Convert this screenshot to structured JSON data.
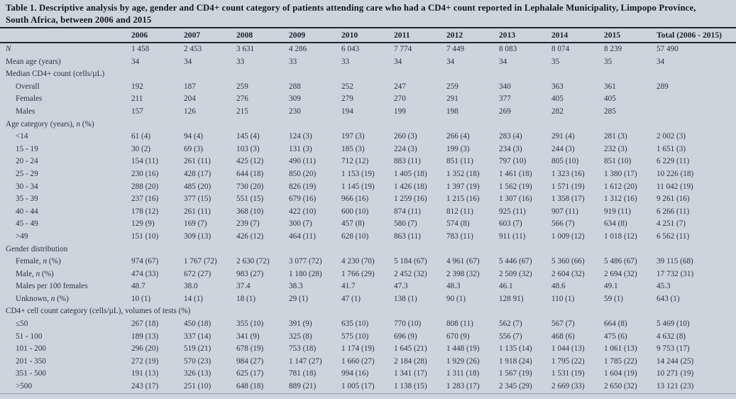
{
  "table": {
    "title_line1": "Table 1. Descriptive analysis by age, gender and CD4+ count category of patients attending care who had a CD4+ count reported in Lephalale Municipality, Limpopo Province,",
    "title_line2": "South Africa, between 2006 and 2015",
    "columns": [
      "2006",
      "2007",
      "2008",
      "2009",
      "2010",
      "2011",
      "2012",
      "2013",
      "2014",
      "2015",
      "Total (2006 - 2015)"
    ],
    "rows": [
      {
        "label": "N",
        "italic": true,
        "indent": 0,
        "values": [
          "1 458",
          "2 453",
          "3 631",
          "4 286",
          "6 043",
          "7 774",
          "7 449",
          "8 083",
          "8 074",
          "8 239",
          "57 490"
        ]
      },
      {
        "label": "Mean age (years)",
        "indent": 0,
        "values": [
          "34",
          "34",
          "33",
          "33",
          "33",
          "34",
          "34",
          "34",
          "35",
          "35",
          "34"
        ]
      },
      {
        "label": "Median CD4+ count (cells/µL)",
        "section": true
      },
      {
        "label": "Overall",
        "indent": 1,
        "values": [
          "192",
          "187",
          "259",
          "288",
          "252",
          "247",
          "259",
          "340",
          "363",
          "361",
          "289"
        ]
      },
      {
        "label": "Females",
        "indent": 1,
        "values": [
          "211",
          "204",
          "276",
          "309",
          "279",
          "270",
          "291",
          "377",
          "405",
          "405",
          ""
        ]
      },
      {
        "label": "Males",
        "indent": 1,
        "values": [
          "157",
          "126",
          "215",
          "230",
          "194",
          "199",
          "198",
          "269",
          "282",
          "285",
          ""
        ]
      },
      {
        "label": "Age category (years), n (%)",
        "section": true
      },
      {
        "label": "<14",
        "indent": 1,
        "values": [
          "61 (4)",
          "94 (4)",
          "145 (4)",
          "124 (3)",
          "197 (3)",
          "260 (3)",
          "266 (4)",
          "283 (4)",
          "291 (4)",
          "281 (3)",
          "2 002 (3)"
        ]
      },
      {
        "label": "15 - 19",
        "indent": 1,
        "values": [
          "30 (2)",
          "69 (3)",
          "103 (3)",
          "131 (3)",
          "185 (3)",
          "224 (3)",
          "199 (3)",
          "234 (3)",
          "244 (3)",
          "232 (3)",
          "1 651 (3)"
        ]
      },
      {
        "label": "20 - 24",
        "indent": 1,
        "values": [
          "154 (11)",
          "261 (11)",
          "425 (12)",
          "490 (11)",
          "712 (12)",
          "883 (11)",
          "851 (11)",
          "797 (10)",
          "805 (10)",
          "851 (10)",
          "6 229 (11)"
        ]
      },
      {
        "label": "25 - 29",
        "indent": 1,
        "values": [
          "230 (16)",
          "428 (17)",
          "644 (18)",
          "850 (20)",
          "1 153 (19)",
          "1 405 (18)",
          "1 352 (18)",
          "1 461 (18)",
          "1 323 (16)",
          "1 380 (17)",
          "10 226 (18)"
        ]
      },
      {
        "label": "30 - 34",
        "indent": 1,
        "values": [
          "288 (20)",
          "485 (20)",
          "730 (20)",
          "826 (19)",
          "1 145 (19)",
          "1 426 (18)",
          "1 397 (19)",
          "1 562 (19)",
          "1 571 (19)",
          "1 612 (20)",
          "11 042 (19)"
        ]
      },
      {
        "label": "35 - 39",
        "indent": 1,
        "values": [
          "237 (16)",
          "377 (15)",
          "551 (15)",
          "679 (16)",
          "966 (16)",
          "1 259 (16)",
          "1 215 (16)",
          "1 307 (16)",
          "1 358 (17)",
          "1 312 (16)",
          "9 261 (16)"
        ]
      },
      {
        "label": "40 - 44",
        "indent": 1,
        "values": [
          "178 (12)",
          "261 (11)",
          "368 (10)",
          "422 (10)",
          "600 (10)",
          "874 (11)",
          "812 (11)",
          "925 (11)",
          "907 (11)",
          "919 (11)",
          "6 266 (11)"
        ]
      },
      {
        "label": "45 - 49",
        "indent": 1,
        "values": [
          "129 (9)",
          "169 (7)",
          "239 (7)",
          "300 (7)",
          "457 (8)",
          "580 (7)",
          "574 (8)",
          "603 (7)",
          "566 (7)",
          "634 (8)",
          "4 251 (7)"
        ]
      },
      {
        "label": ">49",
        "indent": 1,
        "values": [
          "151 (10)",
          "309 (13)",
          "426 (12)",
          "464 (11)",
          "628 (10)",
          "863 (11)",
          "783 (11)",
          "911 (11)",
          "1 009 (12)",
          "1 018 (12)",
          "6 562 (11)"
        ]
      },
      {
        "label": "Gender distribution",
        "section": true
      },
      {
        "label": "Female, n (%)",
        "indent": 1,
        "values": [
          "974 (67)",
          "1 767 (72)",
          "2 630 (72)",
          "3 077 (72)",
          "4 230 (70)",
          "5 184 (67)",
          "4 961 (67)",
          "5 446 (67)",
          "5 360 (66)",
          "5 486 (67)",
          "39 115 (68)"
        ]
      },
      {
        "label": "Male, n (%)",
        "indent": 1,
        "values": [
          "474 (33)",
          "672 (27)",
          "983 (27)",
          "1 180 (28)",
          "1 766 (29)",
          "2 452 (32)",
          "2 398 (32)",
          "2 509 (32)",
          "2 604 (32)",
          "2 694 (32)",
          "17 732 (31)"
        ]
      },
      {
        "label": "Males per 100 females",
        "indent": 1,
        "values": [
          "48.7",
          "38.0",
          "37.4",
          "38.3",
          "41.7",
          "47.3",
          "48.3",
          "46.1",
          "48.6",
          "49.1",
          "45.3"
        ]
      },
      {
        "label": "Unknown, n (%)",
        "indent": 1,
        "values": [
          "10 (1)",
          "14 (1)",
          "18 (1)",
          "29 (1)",
          "47 (1)",
          "138 (1)",
          "90 (1)",
          "128 91)",
          "110 (1)",
          "59 (1)",
          "643 (1)"
        ]
      },
      {
        "label": "CD4+ cell count category (cells/µL), volumes of tests (%)",
        "section": true
      },
      {
        "label": "≤50",
        "indent": 1,
        "values": [
          "267 (18)",
          "450 (18)",
          "355 (10)",
          "391 (9)",
          "635 (10)",
          "770 (10)",
          "808 (11)",
          "562 (7)",
          "567 (7)",
          "664 (8)",
          "5 469 (10)"
        ]
      },
      {
        "label": "51 - 100",
        "indent": 1,
        "values": [
          "189 (13)",
          "337 (14)",
          "341 (9)",
          "325 (8)",
          "575 (10)",
          "696 (9)",
          "670 (9)",
          "556 (7)",
          "468 (6)",
          "475 (6)",
          "4 632 (8)"
        ]
      },
      {
        "label": "101 - 200",
        "indent": 1,
        "values": [
          "296 (20)",
          "519 (21)",
          "678 (19)",
          "753 (18)",
          "1 174 (19)",
          "1 645 (21)",
          "1 448 (19)",
          "1 135 (14)",
          "1 044 (13)",
          "1 061 (13)",
          "9 753 (17)"
        ]
      },
      {
        "label": "201 - 350",
        "indent": 1,
        "values": [
          "272 (19)",
          "570 (23)",
          "984 (27)",
          "1 147 (27)",
          "1 660 (27)",
          "2 184 (28)",
          "1 929 (26)",
          "1 918 (24)",
          "1 795 (22)",
          "1 785 (22)",
          "14 244 (25)"
        ]
      },
      {
        "label": "351 - 500",
        "indent": 1,
        "values": [
          "191 (13)",
          "326 (13)",
          "625 (17)",
          "781 (18)",
          "994 (16)",
          "1 341 (17)",
          "1 311 (18)",
          "1 567 (19)",
          "1 531 (19)",
          "1 604 (19)",
          "10 271 (19)"
        ]
      },
      {
        "label": ">500",
        "indent": 1,
        "values": [
          "243 (17)",
          "251 (10)",
          "648 (18)",
          "889 (21)",
          "1 005 (17)",
          "1 138 (15)",
          "1 283 (17)",
          "2 345 (29)",
          "2 669 (33)",
          "2 650 (32)",
          "13 121 (23)"
        ]
      }
    ]
  },
  "colors": {
    "background": "#ccd4dd",
    "text": "#2b3442",
    "title_text": "#13181f",
    "rule_dark": "#1e2630",
    "rule_light": "#959ea9"
  }
}
